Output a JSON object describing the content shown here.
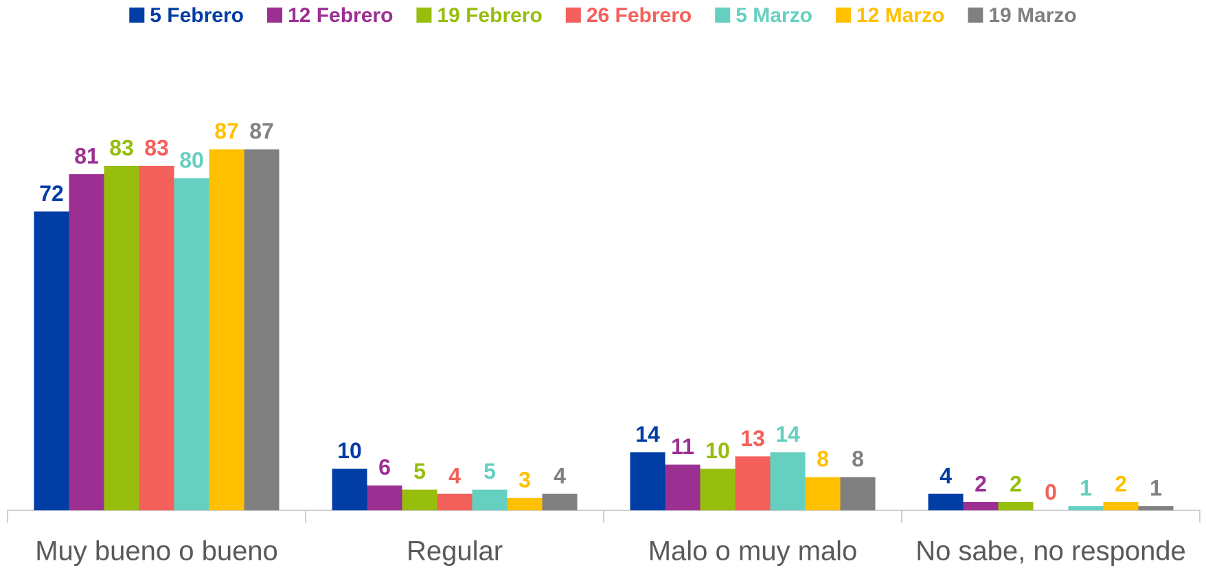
{
  "chart_data": {
    "type": "bar",
    "categories": [
      "Muy bueno o bueno",
      "Regular",
      "Malo o muy malo",
      "No sabe, no responde"
    ],
    "series": [
      {
        "name": "5 Febrero",
        "color": "#003da5",
        "values": [
          72,
          10,
          14,
          4
        ]
      },
      {
        "name": "12 Febrero",
        "color": "#9c2f92",
        "values": [
          81,
          6,
          11,
          2
        ]
      },
      {
        "name": "19 Febrero",
        "color": "#97be0d",
        "values": [
          83,
          5,
          10,
          2
        ]
      },
      {
        "name": "26 Febrero",
        "color": "#f4605b",
        "values": [
          83,
          4,
          13,
          0
        ]
      },
      {
        "name": "5 Marzo",
        "color": "#66d0c0",
        "values": [
          80,
          5,
          14,
          1
        ]
      },
      {
        "name": "12 Marzo",
        "color": "#ffc000",
        "values": [
          87,
          3,
          8,
          2
        ]
      },
      {
        "name": "19 Marzo",
        "color": "#808080",
        "values": [
          87,
          4,
          8,
          1
        ]
      }
    ],
    "ylim": [
      0,
      100
    ],
    "legend": "top"
  }
}
